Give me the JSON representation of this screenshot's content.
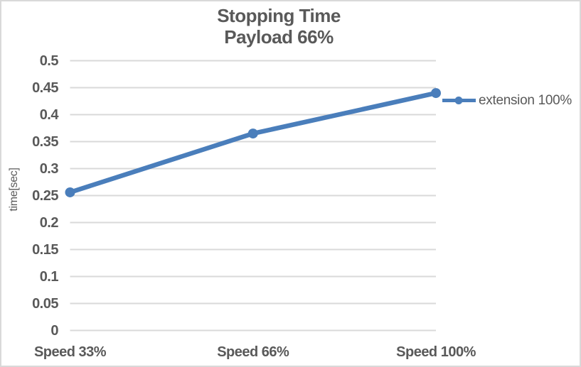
{
  "chart": {
    "title": "Stopping Time",
    "subtitle": "Payload 66%"
  },
  "chart_data": {
    "type": "line",
    "title": "Stopping Time",
    "subtitle": "Payload 66%",
    "categories": [
      "Speed 33%",
      "Speed 66%",
      "Speed 100%"
    ],
    "series": [
      {
        "name": "extension 100%",
        "values": [
          0.256,
          0.365,
          0.44
        ]
      }
    ],
    "xlabel": "",
    "ylabel": "time[sec]",
    "ylim": [
      0,
      0.5
    ],
    "yticks": [
      0,
      0.05,
      0.1,
      0.15,
      0.2,
      0.25,
      0.3,
      0.35,
      0.4,
      0.45,
      0.5
    ],
    "ytick_labels": [
      "0",
      "0.05",
      "0.1",
      "0.15",
      "0.2",
      "0.25",
      "0.3",
      "0.35",
      "0.4",
      "0.45",
      "0.5"
    ],
    "grid": true,
    "legend_position": "right",
    "colors": {
      "series": "#4A7EBB",
      "gridline": "#D9D9D9",
      "text": "#595959",
      "border": "#D9D9D9",
      "background": "#FFFFFF"
    }
  }
}
